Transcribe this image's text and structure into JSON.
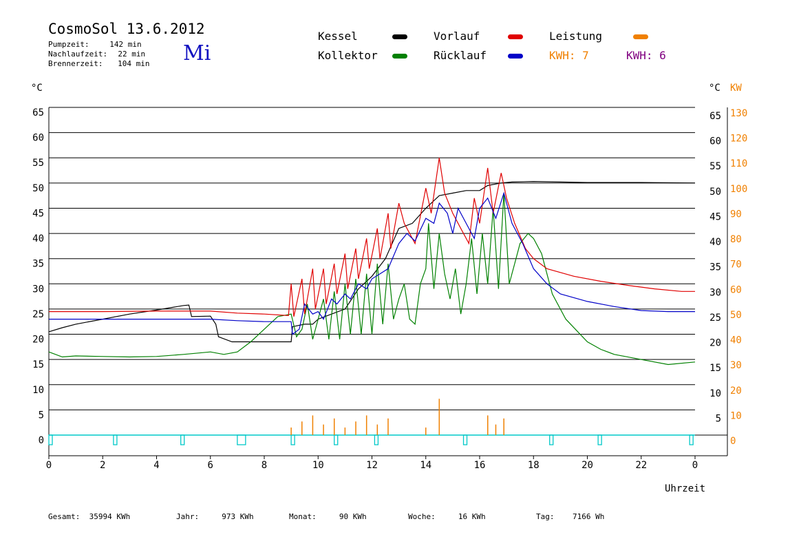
{
  "header": {
    "title": "CosmoSol 13.6.2012",
    "day": "Mi",
    "stats": [
      {
        "label": "Pumpzeit:",
        "value": "142 min"
      },
      {
        "label": "Nachlaufzeit:",
        "value": "22 min"
      },
      {
        "label": "Brennerzeit:",
        "value": "104 min"
      }
    ]
  },
  "legend": {
    "kessel": "Kessel",
    "kollektor": "Kollektor",
    "vorlauf": "Vorlauf",
    "ruecklauf": "Rücklauf",
    "leistung": "Leistung",
    "kwh1": "KWH: 7",
    "kwh2": "KWH: 6"
  },
  "colors": {
    "kessel": "#000000",
    "kollektor": "#008000",
    "vorlauf": "#e00000",
    "ruecklauf": "#0000c8",
    "leistung": "#f08000",
    "kwh2": "#800080",
    "pump": "#00c8c8"
  },
  "footer": [
    {
      "label": "Gesamt:",
      "value": "35994 KWh"
    },
    {
      "label": "Jahr:",
      "value": "973 KWh"
    },
    {
      "label": "Monat:",
      "value": "90 KWh"
    },
    {
      "label": "Woche:",
      "value": "16 KWh"
    },
    {
      "label": "Tag:",
      "value": "7166 Wh"
    }
  ],
  "chart_data": {
    "type": "line",
    "xlabel": "Uhrzeit",
    "ylabel_left": "°C",
    "ylabel_right": [
      "°C",
      "KW"
    ],
    "xlim": [
      0,
      24
    ],
    "ylim": [
      0,
      65
    ],
    "ylim_right_kw": [
      0,
      130
    ],
    "grid": "horizontal",
    "x_ticks": [
      "0",
      "2",
      "4",
      "6",
      "8",
      "10",
      "12",
      "14",
      "16",
      "18",
      "20",
      "22",
      "0"
    ],
    "y_ticks": [
      0,
      5,
      10,
      15,
      20,
      25,
      30,
      35,
      40,
      45,
      50,
      55,
      60,
      65
    ],
    "y_ticks_right_c": [
      5,
      10,
      15,
      20,
      25,
      30,
      35,
      40,
      45,
      50,
      55,
      60,
      65
    ],
    "y_ticks_right_kw": [
      0,
      10,
      20,
      30,
      40,
      50,
      60,
      70,
      80,
      90,
      100,
      110,
      120,
      130
    ],
    "series": [
      {
        "name": "Kessel",
        "key": "kessel",
        "points": [
          [
            0,
            20.5
          ],
          [
            0.5,
            21.3
          ],
          [
            1,
            22
          ],
          [
            2,
            23
          ],
          [
            3,
            24
          ],
          [
            4,
            24.8
          ],
          [
            5,
            25.7
          ],
          [
            5.2,
            25.8
          ],
          [
            5.3,
            23.5
          ],
          [
            6,
            23.6
          ],
          [
            6.2,
            22
          ],
          [
            6.3,
            19.5
          ],
          [
            6.8,
            18.5
          ],
          [
            7.5,
            18.5
          ],
          [
            8,
            18.5
          ],
          [
            9,
            18.5
          ],
          [
            9.05,
            21.5
          ],
          [
            9.5,
            22
          ],
          [
            9.8,
            22
          ],
          [
            10,
            23
          ],
          [
            10.5,
            24
          ],
          [
            11,
            25
          ],
          [
            11.5,
            29
          ],
          [
            12,
            31.5
          ],
          [
            12.5,
            35
          ],
          [
            13,
            41
          ],
          [
            13.5,
            42
          ],
          [
            14,
            45
          ],
          [
            14.5,
            47.5
          ],
          [
            15,
            48
          ],
          [
            15.5,
            48.5
          ],
          [
            16,
            48.5
          ],
          [
            16.3,
            49.5
          ],
          [
            16.8,
            50
          ],
          [
            17.2,
            50.2
          ],
          [
            18,
            50.3
          ],
          [
            20,
            50.1
          ],
          [
            22,
            50.1
          ],
          [
            24,
            50
          ]
        ]
      },
      {
        "name": "Kollektor",
        "key": "kollektor",
        "points": [
          [
            0,
            16.5
          ],
          [
            0.5,
            15.5
          ],
          [
            1,
            15.7
          ],
          [
            2,
            15.6
          ],
          [
            3,
            15.5
          ],
          [
            4,
            15.6
          ],
          [
            5,
            16
          ],
          [
            6,
            16.5
          ],
          [
            6.5,
            16
          ],
          [
            7,
            16.5
          ],
          [
            7.5,
            18.5
          ],
          [
            8,
            21
          ],
          [
            8.5,
            23.5
          ],
          [
            9,
            24
          ],
          [
            9.2,
            19.5
          ],
          [
            9.4,
            21
          ],
          [
            9.6,
            26
          ],
          [
            9.8,
            19
          ],
          [
            10,
            23
          ],
          [
            10.2,
            27
          ],
          [
            10.4,
            19
          ],
          [
            10.6,
            28.5
          ],
          [
            10.8,
            19
          ],
          [
            11,
            30
          ],
          [
            11.2,
            20
          ],
          [
            11.4,
            31
          ],
          [
            11.6,
            20
          ],
          [
            11.8,
            32
          ],
          [
            12,
            20
          ],
          [
            12.2,
            34
          ],
          [
            12.4,
            22
          ],
          [
            12.6,
            34
          ],
          [
            12.8,
            23
          ],
          [
            13,
            27
          ],
          [
            13.2,
            30
          ],
          [
            13.4,
            23
          ],
          [
            13.6,
            22
          ],
          [
            13.8,
            30
          ],
          [
            14,
            33
          ],
          [
            14.1,
            42
          ],
          [
            14.3,
            29
          ],
          [
            14.5,
            40
          ],
          [
            14.7,
            32
          ],
          [
            14.9,
            27
          ],
          [
            15.1,
            33
          ],
          [
            15.3,
            24
          ],
          [
            15.5,
            30
          ],
          [
            15.7,
            39
          ],
          [
            15.9,
            28
          ],
          [
            16.1,
            40
          ],
          [
            16.3,
            30
          ],
          [
            16.5,
            45
          ],
          [
            16.7,
            29
          ],
          [
            16.9,
            48
          ],
          [
            17.1,
            30
          ],
          [
            17.3,
            34
          ],
          [
            17.5,
            38
          ],
          [
            17.8,
            40
          ],
          [
            18,
            39
          ],
          [
            18.3,
            36
          ],
          [
            18.7,
            28
          ],
          [
            19.2,
            23
          ],
          [
            20,
            18.5
          ],
          [
            20.5,
            17
          ],
          [
            21,
            16
          ],
          [
            22,
            15
          ],
          [
            23,
            14
          ],
          [
            24,
            14.5
          ]
        ]
      },
      {
        "name": "Vorlauf",
        "key": "vorlauf",
        "points": [
          [
            0,
            24.5
          ],
          [
            2,
            24.5
          ],
          [
            4,
            24.6
          ],
          [
            6,
            24.6
          ],
          [
            7,
            24.2
          ],
          [
            8,
            24
          ],
          [
            8.9,
            23.7
          ],
          [
            9,
            30
          ],
          [
            9.1,
            23.5
          ],
          [
            9.4,
            31
          ],
          [
            9.5,
            24
          ],
          [
            9.8,
            33
          ],
          [
            9.9,
            25
          ],
          [
            10.2,
            33
          ],
          [
            10.3,
            26
          ],
          [
            10.6,
            34
          ],
          [
            10.7,
            28
          ],
          [
            11,
            36
          ],
          [
            11.1,
            29
          ],
          [
            11.4,
            37
          ],
          [
            11.5,
            31
          ],
          [
            11.8,
            39
          ],
          [
            11.9,
            33
          ],
          [
            12.2,
            41
          ],
          [
            12.3,
            35
          ],
          [
            12.6,
            44
          ],
          [
            12.7,
            37
          ],
          [
            13,
            46
          ],
          [
            13.2,
            42
          ],
          [
            13.6,
            38
          ],
          [
            14,
            49
          ],
          [
            14.2,
            44
          ],
          [
            14.5,
            55
          ],
          [
            14.7,
            48
          ],
          [
            15,
            44
          ],
          [
            15.3,
            41
          ],
          [
            15.6,
            38
          ],
          [
            15.8,
            47
          ],
          [
            16,
            42
          ],
          [
            16.3,
            53
          ],
          [
            16.5,
            44
          ],
          [
            16.8,
            52
          ],
          [
            17,
            47
          ],
          [
            17.3,
            42
          ],
          [
            17.7,
            37
          ],
          [
            18,
            35
          ],
          [
            18.5,
            33
          ],
          [
            19.5,
            31.5
          ],
          [
            20.5,
            30.5
          ],
          [
            21.5,
            29.7
          ],
          [
            22.5,
            29
          ],
          [
            23.5,
            28.5
          ],
          [
            24,
            28.5
          ]
        ]
      },
      {
        "name": "Rücklauf",
        "key": "ruecklauf",
        "points": [
          [
            0,
            23
          ],
          [
            2,
            23
          ],
          [
            4,
            23
          ],
          [
            6,
            23
          ],
          [
            7,
            22.7
          ],
          [
            8,
            22.5
          ],
          [
            9,
            22.5
          ],
          [
            9.05,
            20
          ],
          [
            9.3,
            21
          ],
          [
            9.5,
            26
          ],
          [
            9.8,
            24
          ],
          [
            10,
            24.5
          ],
          [
            10.2,
            23
          ],
          [
            10.5,
            27
          ],
          [
            10.7,
            26
          ],
          [
            11,
            28
          ],
          [
            11.2,
            27
          ],
          [
            11.5,
            30
          ],
          [
            11.8,
            29
          ],
          [
            12,
            31
          ],
          [
            12.3,
            32
          ],
          [
            12.6,
            33
          ],
          [
            13,
            38
          ],
          [
            13.3,
            40
          ],
          [
            13.6,
            38.5
          ],
          [
            14,
            43
          ],
          [
            14.3,
            42
          ],
          [
            14.5,
            46
          ],
          [
            14.8,
            44
          ],
          [
            15,
            40
          ],
          [
            15.2,
            45
          ],
          [
            15.5,
            42
          ],
          [
            15.8,
            39
          ],
          [
            16,
            45
          ],
          [
            16.3,
            47
          ],
          [
            16.6,
            43
          ],
          [
            16.9,
            48
          ],
          [
            17.2,
            42
          ],
          [
            17.6,
            38
          ],
          [
            18,
            33
          ],
          [
            18.5,
            30
          ],
          [
            19,
            28
          ],
          [
            20,
            26.5
          ],
          [
            21,
            25.5
          ],
          [
            22,
            24.7
          ],
          [
            23,
            24.5
          ],
          [
            24,
            24.5
          ]
        ]
      }
    ],
    "leistung_spikes": [
      9,
      9.4,
      9.8,
      10.2,
      10.6,
      11,
      11.4,
      11.8,
      12.2,
      12.6,
      14,
      14.5,
      16.3,
      16.6,
      16.9
    ],
    "pump_marks": [
      0,
      2.4,
      4.9,
      7,
      9,
      10.6,
      12.1,
      15.4,
      18.6,
      20.4,
      23.8
    ]
  }
}
